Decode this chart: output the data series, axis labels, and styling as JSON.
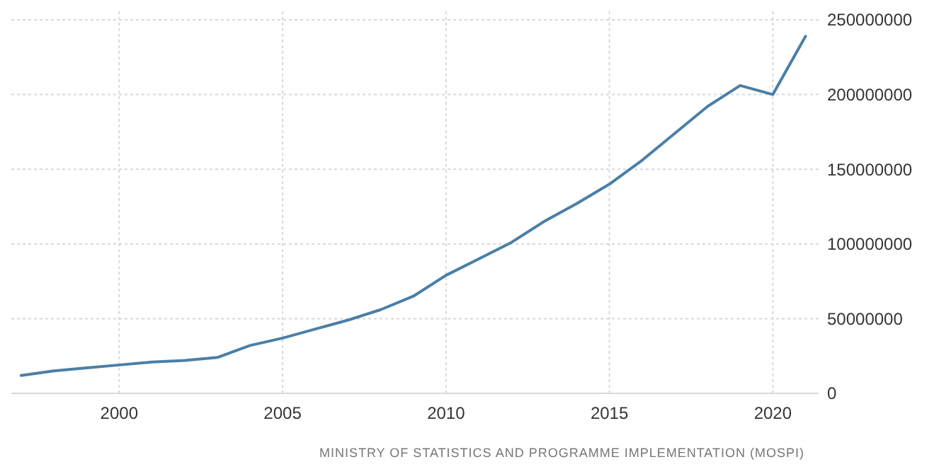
{
  "chart_data": {
    "type": "line",
    "x": [
      1997,
      1998,
      1999,
      2000,
      2001,
      2002,
      2003,
      2004,
      2005,
      2006,
      2007,
      2008,
      2009,
      2010,
      2011,
      2012,
      2013,
      2014,
      2015,
      2016,
      2017,
      2018,
      2019,
      2020,
      2021
    ],
    "series": [
      {
        "color": "#4a7fa7",
        "values": [
          12000000,
          15000000,
          17000000,
          19000000,
          21000000,
          22000000,
          24000000,
          32000000,
          37000000,
          43000000,
          49000000,
          56000000,
          65000000,
          79000000,
          90000000,
          101000000,
          115000000,
          127000000,
          140000000,
          156000000,
          174000000,
          192000000,
          206000000,
          200000000,
          239000000
        ]
      }
    ],
    "xlim": [
      1996.7,
      2021.4
    ],
    "xticks": [
      2000,
      2005,
      2010,
      2015,
      2020
    ],
    "ylim": [
      0,
      250000000
    ],
    "yticks": [
      0,
      50000000,
      100000000,
      150000000,
      200000000,
      250000000
    ],
    "grid": true,
    "marker": "none",
    "line_style": "solid",
    "annotations": [
      "MINISTRY OF STATISTICS AND PROGRAMME IMPLEMENTATION (MOSPI)"
    ]
  }
}
